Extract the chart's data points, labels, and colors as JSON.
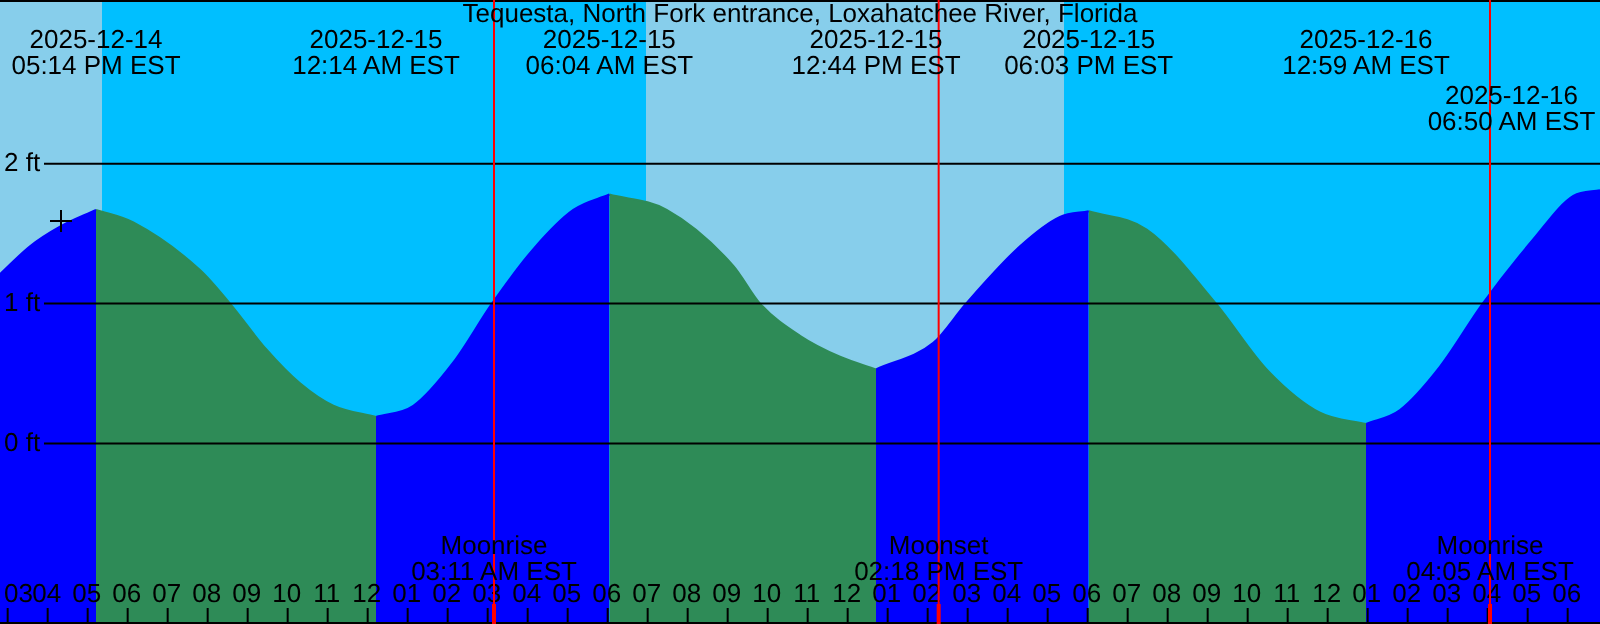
{
  "chart_data": {
    "type": "area",
    "title": "Tequesta, North Fork entrance, Loxahatchee River, Florida",
    "series": [
      {
        "color": "#0000ff",
        "x": [
          "2025-12-14T14:50",
          "2025-12-14T15:35",
          "2025-12-14T16:20",
          "2025-12-14T17:14"
        ],
        "values": [
          1.21,
          1.41,
          1.55,
          1.67
        ]
      },
      {
        "color": "#2e8b57",
        "x": [
          "2025-12-14T17:14",
          "2025-12-14T18:10",
          "2025-12-14T19:50",
          "2025-12-14T20:35",
          "2025-12-14T21:30",
          "2025-12-14T22:20",
          "2025-12-14T23:10",
          "2025-12-15T00:14"
        ],
        "values": [
          1.67,
          1.58,
          1.24,
          1.0,
          0.67,
          0.43,
          0.27,
          0.19
        ]
      },
      {
        "color": "#0000ff",
        "x": [
          "2025-12-15T00:14",
          "2025-12-15T01:10",
          "2025-12-15T02:10",
          "2025-12-15T03:08",
          "2025-12-15T04:10",
          "2025-12-15T05:10",
          "2025-12-15T06:04"
        ],
        "values": [
          0.19,
          0.27,
          0.58,
          1.0,
          1.39,
          1.67,
          1.78
        ]
      },
      {
        "color": "#2e8b57",
        "x": [
          "2025-12-15T06:04",
          "2025-12-15T07:30",
          "2025-12-15T09:10",
          "2025-12-15T09:50",
          "2025-12-15T10:50",
          "2025-12-15T11:50",
          "2025-12-15T12:44"
        ],
        "values": [
          1.78,
          1.67,
          1.27,
          1.0,
          0.77,
          0.62,
          0.53
        ]
      },
      {
        "color": "#0000ff",
        "x": [
          "2025-12-15T12:44",
          "2025-12-15T14:10",
          "2025-12-15T14:59",
          "2025-12-15T16:20",
          "2025-12-15T17:20",
          "2025-12-15T18:03"
        ],
        "values": [
          0.53,
          0.72,
          1.0,
          1.41,
          1.62,
          1.66
        ]
      },
      {
        "color": "#2e8b57",
        "x": [
          "2025-12-15T18:03",
          "2025-12-15T19:30",
          "2025-12-15T21:14",
          "2025-12-15T22:30",
          "2025-12-15T23:50",
          "2025-12-16T00:59"
        ],
        "values": [
          1.66,
          1.53,
          1.0,
          0.53,
          0.22,
          0.14
        ]
      },
      {
        "color": "#0000ff",
        "x": [
          "2025-12-16T00:59",
          "2025-12-16T01:50",
          "2025-12-16T02:50",
          "2025-12-16T03:54",
          "2025-12-16T05:10",
          "2025-12-16T06:10",
          "2025-12-16T06:50"
        ],
        "values": [
          0.14,
          0.24,
          0.55,
          1.0,
          1.46,
          1.77,
          1.81
        ]
      }
    ],
    "xlim": [
      "2025-12-14T14:50",
      "2025-12-16T06:50"
    ],
    "xticks": [
      {
        "value": "2025-12-14T15:00",
        "label": "03"
      },
      {
        "value": "2025-12-14T16:00",
        "label": "04"
      },
      {
        "value": "2025-12-14T17:00",
        "label": "05"
      },
      {
        "value": "2025-12-14T18:00",
        "label": "06"
      },
      {
        "value": "2025-12-14T19:00",
        "label": "07"
      },
      {
        "value": "2025-12-14T20:00",
        "label": "08"
      },
      {
        "value": "2025-12-14T21:00",
        "label": "09"
      },
      {
        "value": "2025-12-14T22:00",
        "label": "10"
      },
      {
        "value": "2025-12-14T23:00",
        "label": "11"
      },
      {
        "value": "2025-12-15T00:00",
        "label": "12"
      },
      {
        "value": "2025-12-15T01:00",
        "label": "01"
      },
      {
        "value": "2025-12-15T02:00",
        "label": "02"
      },
      {
        "value": "2025-12-15T03:00",
        "label": "03"
      },
      {
        "value": "2025-12-15T04:00",
        "label": "04"
      },
      {
        "value": "2025-12-15T05:00",
        "label": "05"
      },
      {
        "value": "2025-12-15T06:00",
        "label": "06"
      },
      {
        "value": "2025-12-15T07:00",
        "label": "07"
      },
      {
        "value": "2025-12-15T08:00",
        "label": "08"
      },
      {
        "value": "2025-12-15T09:00",
        "label": "09"
      },
      {
        "value": "2025-12-15T10:00",
        "label": "10"
      },
      {
        "value": "2025-12-15T11:00",
        "label": "11"
      },
      {
        "value": "2025-12-15T12:00",
        "label": "12"
      },
      {
        "value": "2025-12-15T13:00",
        "label": "01"
      },
      {
        "value": "2025-12-15T14:00",
        "label": "02"
      },
      {
        "value": "2025-12-15T15:00",
        "label": "03"
      },
      {
        "value": "2025-12-15T16:00",
        "label": "04"
      },
      {
        "value": "2025-12-15T17:00",
        "label": "05"
      },
      {
        "value": "2025-12-15T18:00",
        "label": "06"
      },
      {
        "value": "2025-12-15T19:00",
        "label": "07"
      },
      {
        "value": "2025-12-15T20:00",
        "label": "08"
      },
      {
        "value": "2025-12-15T21:00",
        "label": "09"
      },
      {
        "value": "2025-12-15T22:00",
        "label": "10"
      },
      {
        "value": "2025-12-15T23:00",
        "label": "11"
      },
      {
        "value": "2025-12-16T00:00",
        "label": "12"
      },
      {
        "value": "2025-12-16T01:00",
        "label": "01"
      },
      {
        "value": "2025-12-16T02:00",
        "label": "02"
      },
      {
        "value": "2025-12-16T03:00",
        "label": "03"
      },
      {
        "value": "2025-12-16T04:00",
        "label": "04"
      },
      {
        "value": "2025-12-16T05:00",
        "label": "05"
      },
      {
        "value": "2025-12-16T06:00",
        "label": "06"
      }
    ],
    "ylim": [
      -1.29,
      3.17
    ],
    "yticks": [
      {
        "value": 0,
        "label": "0 ft"
      },
      {
        "value": 1,
        "label": "1 ft"
      },
      {
        "value": 2,
        "label": "2 ft"
      }
    ],
    "grid": "y",
    "legend": false,
    "bands": [
      {
        "axis": "x",
        "from": "2025-12-14T14:50",
        "to": "2025-12-14T17:23",
        "color": "#87ceeb"
      },
      {
        "axis": "x",
        "from": "2025-12-14T17:23",
        "to": "2025-12-15T06:59",
        "color": "#00bfff"
      },
      {
        "axis": "x",
        "from": "2025-12-15T06:59",
        "to": "2025-12-15T17:26",
        "color": "#87ceeb"
      },
      {
        "axis": "x",
        "from": "2025-12-15T17:26",
        "to": "2025-12-16T06:50",
        "color": "#00bfff"
      }
    ],
    "ref_lines": [
      {
        "axis": "x",
        "value": "2025-12-15T03:11",
        "label": "Moonrise\n03:11 AM EST",
        "color": "#ff0000"
      },
      {
        "axis": "x",
        "value": "2025-12-15T14:18",
        "label": "Moonset\n02:18 PM EST",
        "color": "#ff0000"
      },
      {
        "axis": "x",
        "value": "2025-12-16T04:05",
        "label": "Moonrise\n04:05 AM EST",
        "color": "#ff0000"
      }
    ],
    "annotations": [
      "2025-12-14\n05:14 PM EST",
      "2025-12-15\n12:14 AM EST",
      "2025-12-15\n06:04 AM EST",
      "2025-12-15\n12:44 PM EST",
      "2025-12-15\n06:03 PM EST",
      "2025-12-16\n12:59 AM EST",
      "2025-12-16\n06:50 AM EST"
    ]
  }
}
